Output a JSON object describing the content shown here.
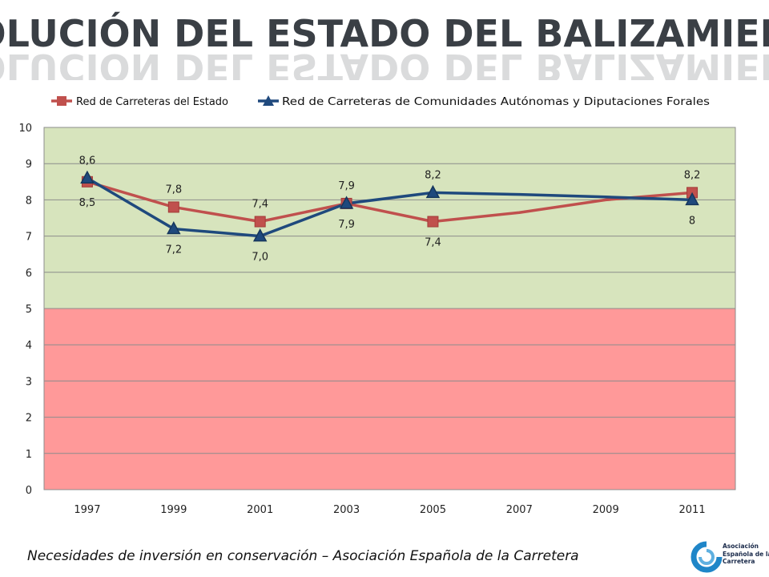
{
  "title": "EVOLUCIÓN DEL ESTADO DEL BALIZAMIENTO",
  "footer": "Necesidades de inversión en conservación – Asociación Española de la Carretera",
  "logo": {
    "lines": [
      "Asociación",
      "Española de la",
      "Carretera"
    ],
    "icon": "aec-logo-icon",
    "color": "#1f86c8"
  },
  "colors": {
    "good_band": "#d7e4bd",
    "bad_band": "#ff9999",
    "series1": "#c0504d",
    "series2": "#1f497d",
    "title_fill": "#3a3f45"
  },
  "chart_data": {
    "type": "line",
    "x": [
      1997,
      1999,
      2001,
      2003,
      2005,
      2007,
      2009,
      2011
    ],
    "x_tick_labels": [
      "1997",
      "1999",
      "2001",
      "2003",
      "2005",
      "2007",
      "2009",
      "2011"
    ],
    "ylim": [
      0,
      10
    ],
    "y_ticks": [
      0,
      1,
      2,
      3,
      4,
      5,
      6,
      7,
      8,
      9,
      10
    ],
    "grid": true,
    "legend": "top",
    "background_bands": [
      {
        "from": 0,
        "to": 5,
        "color": "#ff9999"
      },
      {
        "from": 5,
        "to": 10,
        "color": "#d7e4bd"
      }
    ],
    "series": [
      {
        "name": "Red de Carreteras del Estado",
        "marker": "square",
        "color": "#c0504d",
        "points": [
          {
            "x": 1997,
            "y": 8.5,
            "label": "8,5"
          },
          {
            "x": 1999,
            "y": 7.8,
            "label": "7,8"
          },
          {
            "x": 2001,
            "y": 7.4,
            "label": "7,4"
          },
          {
            "x": 2003,
            "y": 7.9,
            "label": "7,9"
          },
          {
            "x": 2005,
            "y": 7.4,
            "label": "7,4"
          },
          {
            "x": 2007,
            "y": 7.65
          },
          {
            "x": 2009,
            "y": 8.0
          },
          {
            "x": 2011,
            "y": 8.2,
            "label": "8,2"
          }
        ]
      },
      {
        "name": "Red de Carreteras de Comunidades Autónomas y Diputaciones Forales",
        "marker": "triangle",
        "color": "#1f497d",
        "points": [
          {
            "x": 1997,
            "y": 8.6,
            "label": "8,6"
          },
          {
            "x": 1999,
            "y": 7.2,
            "label": "7,2"
          },
          {
            "x": 2001,
            "y": 7.0,
            "label": "7,0"
          },
          {
            "x": 2003,
            "y": 7.9,
            "label": "7,9"
          },
          {
            "x": 2005,
            "y": 8.2,
            "label": "8,2"
          },
          {
            "x": 2007,
            "y": 8.15
          },
          {
            "x": 2009,
            "y": 8.08
          },
          {
            "x": 2011,
            "y": 8.0,
            "label": "8"
          }
        ]
      }
    ]
  }
}
